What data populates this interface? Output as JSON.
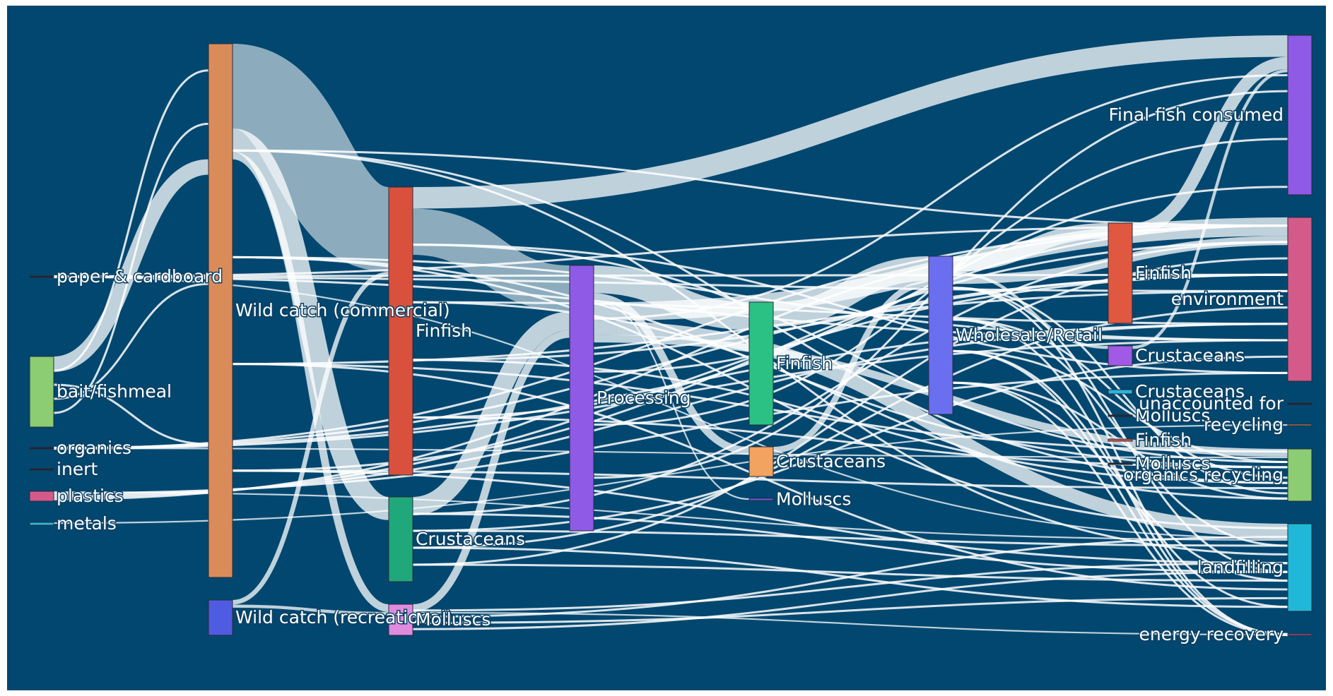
{
  "chart_data": {
    "type": "sankey",
    "title": "",
    "background": "#02476f",
    "nodes": [
      {
        "id": "bait",
        "label": "bait/fishmeal",
        "color": "#8ccc72",
        "stage": 0
      },
      {
        "id": "paper",
        "label": "paper & cardboard",
        "color": "#1f1f2e",
        "stage": 0
      },
      {
        "id": "organics",
        "label": "organics",
        "color": "#1f1f2e",
        "stage": 0
      },
      {
        "id": "inert",
        "label": "inert",
        "color": "#1f1f2e",
        "stage": 0
      },
      {
        "id": "plastics",
        "label": "plastics",
        "color": "#d45a8a",
        "stage": 0
      },
      {
        "id": "metals",
        "label": "metals",
        "color": "#27b7da",
        "stage": 0
      },
      {
        "id": "wild_com",
        "label": "Wild catch (commercial)",
        "color": "#d98c5a",
        "stage": 1
      },
      {
        "id": "wild_rec",
        "label": "Wild catch (recreational)",
        "color": "#4f5be0",
        "stage": 1
      },
      {
        "id": "finfish1",
        "label": "Finfish",
        "color": "#d9503d",
        "stage": 2
      },
      {
        "id": "crust1",
        "label": "Crustaceans",
        "color": "#1fa87a",
        "stage": 2
      },
      {
        "id": "moll1",
        "label": "Molluscs",
        "color": "#e08be0",
        "stage": 2
      },
      {
        "id": "processing",
        "label": "Processing",
        "color": "#8f5ae6",
        "stage": 3
      },
      {
        "id": "finfish2",
        "label": "Finfish",
        "color": "#2bc184",
        "stage": 4
      },
      {
        "id": "crust2",
        "label": "Crustaceans",
        "color": "#f2a360",
        "stage": 4
      },
      {
        "id": "moll2",
        "label": "Molluscs",
        "color": "#6a5ae0",
        "stage": 4
      },
      {
        "id": "wholesale",
        "label": "Wholesale/Retail",
        "color": "#6a6ff0",
        "stage": 5
      },
      {
        "id": "finfish3",
        "label": "Finfish",
        "color": "#e0583f",
        "stage": 6
      },
      {
        "id": "crust3",
        "label": "Crustaceans",
        "color": "#a15ae6",
        "stage": 6
      },
      {
        "id": "crust4",
        "label": "Crustaceans",
        "color": "#27b7da",
        "stage": 6
      },
      {
        "id": "moll3",
        "label": "Molluscs",
        "color": "#1f1f2e",
        "stage": 6
      },
      {
        "id": "finfish4",
        "label": "Finfish",
        "color": "#e0583f",
        "stage": 6
      },
      {
        "id": "moll4",
        "label": "Molluscs",
        "color": "#1f1f2e",
        "stage": 6
      },
      {
        "id": "final",
        "label": "Final fish consumed",
        "color": "#8f5ae6",
        "stage": 7
      },
      {
        "id": "env",
        "label": "environment",
        "color": "#d45a8a",
        "stage": 7
      },
      {
        "id": "unacc",
        "label": "unaccounted for",
        "color": "#1f1f2e",
        "stage": 7
      },
      {
        "id": "recycling",
        "label": "recycling",
        "color": "#d98c5a",
        "stage": 7
      },
      {
        "id": "orgrec",
        "label": "organics recycling",
        "color": "#8ccc72",
        "stage": 7
      },
      {
        "id": "landfill",
        "label": "landfilling",
        "color": "#1fb8d8",
        "stage": 7
      },
      {
        "id": "energy",
        "label": "energy recovery",
        "color": "#d45a8a",
        "stage": 7
      }
    ],
    "links": [
      {
        "source": "wild_com",
        "target": "finfish1",
        "value": 55
      },
      {
        "source": "wild_com",
        "target": "crust1",
        "value": 15
      },
      {
        "source": "wild_com",
        "target": "moll1",
        "value": 5
      },
      {
        "source": "wild_com",
        "target": "bait",
        "value": 10
      },
      {
        "source": "wild_rec",
        "target": "finfish1",
        "value": 3
      },
      {
        "source": "wild_rec",
        "target": "moll1",
        "value": 2
      },
      {
        "source": "finfish1",
        "target": "final",
        "value": 14
      },
      {
        "source": "finfish1",
        "target": "processing",
        "value": 30
      },
      {
        "source": "crust1",
        "target": "processing",
        "value": 12
      },
      {
        "source": "moll1",
        "target": "processing",
        "value": 5
      },
      {
        "source": "processing",
        "target": "finfish2",
        "value": 18
      },
      {
        "source": "processing",
        "target": "crust2",
        "value": 5
      },
      {
        "source": "processing",
        "target": "moll2",
        "value": 1
      },
      {
        "source": "processing",
        "target": "env",
        "value": 12
      },
      {
        "source": "processing",
        "target": "landfill",
        "value": 9
      },
      {
        "source": "processing",
        "target": "orgrec",
        "value": 5
      },
      {
        "source": "finfish2",
        "target": "wholesale",
        "value": 16
      },
      {
        "source": "crust2",
        "target": "wholesale",
        "value": 4
      },
      {
        "source": "wholesale",
        "target": "finfish3",
        "value": 10
      },
      {
        "source": "wholesale",
        "target": "crust3",
        "value": 2
      },
      {
        "source": "wholesale",
        "target": "env",
        "value": 6
      },
      {
        "source": "finfish3",
        "target": "final",
        "value": 8
      },
      {
        "source": "crust3",
        "target": "final",
        "value": 2
      },
      {
        "source": "paper",
        "target": "landfill",
        "value": 1
      },
      {
        "source": "plastics",
        "target": "landfill",
        "value": 1
      },
      {
        "source": "organics",
        "target": "orgrec",
        "value": 1
      },
      {
        "source": "metals",
        "target": "recycling",
        "value": 1
      },
      {
        "source": "moll1",
        "target": "energy",
        "value": 1
      }
    ]
  }
}
